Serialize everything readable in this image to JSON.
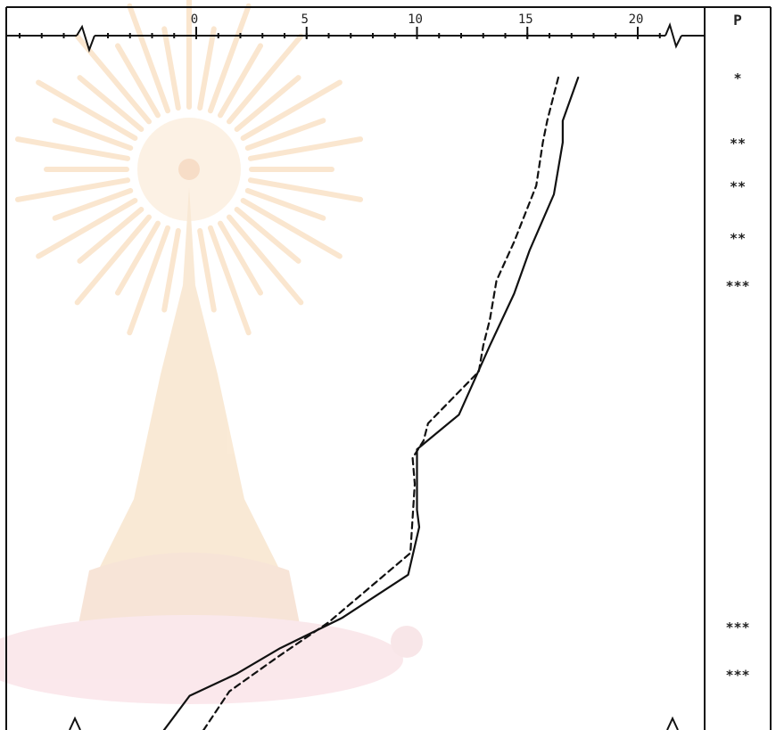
{
  "chart_data": {
    "type": "line",
    "x_tick_labels": [
      "0",
      "5",
      "10",
      "15",
      "20"
    ],
    "xlim": [
      -9,
      23
    ],
    "x_ticks": [
      0,
      5,
      10,
      15,
      20
    ],
    "y_levels": 14,
    "series": [
      {
        "style": "solid",
        "x": [
          17.3,
          16.6,
          16.6,
          16.2,
          15.1,
          14.4,
          13.3,
          11.9,
          10.0,
          10.0,
          10.1,
          9.6,
          6.6,
          3.8,
          1.8,
          -0.3,
          -2.2
        ],
        "y": [
          1,
          2,
          2.5,
          3.7,
          5,
          6,
          7.2,
          8.8,
          9.6,
          11,
          11.4,
          12.5,
          13.5,
          14.2,
          14.8,
          15.3,
          16.6
        ]
      },
      {
        "style": "dashed",
        "x": [
          16.4,
          15.9,
          15.7,
          15.4,
          14.4,
          13.6,
          13.3,
          13.0,
          12.8,
          10.5,
          10.3,
          9.8,
          9.9,
          9.7,
          6.0,
          3.7,
          1.5,
          -0.2
        ],
        "y": [
          1,
          2,
          2.5,
          3.5,
          4.8,
          5.7,
          6.6,
          7.2,
          7.8,
          9.0,
          9.4,
          9.8,
          10.4,
          12.0,
          13.6,
          14.4,
          15.2,
          16.5
        ]
      }
    ],
    "significance_header": "P",
    "significance": [
      {
        "level": 1,
        "label": "*"
      },
      {
        "level": 2.5,
        "label": "**"
      },
      {
        "level": 3.5,
        "label": "**"
      },
      {
        "level": 4.7,
        "label": "**"
      },
      {
        "level": 5.8,
        "label": "***"
      },
      {
        "level": 13.7,
        "label": "***"
      },
      {
        "level": 14.8,
        "label": "***"
      }
    ],
    "grid": false,
    "legend": "none"
  },
  "colors": {
    "line": "#111111",
    "frame": "#111111",
    "watermark": "#f2c39a",
    "watermark_base": "#f4d3d6"
  }
}
